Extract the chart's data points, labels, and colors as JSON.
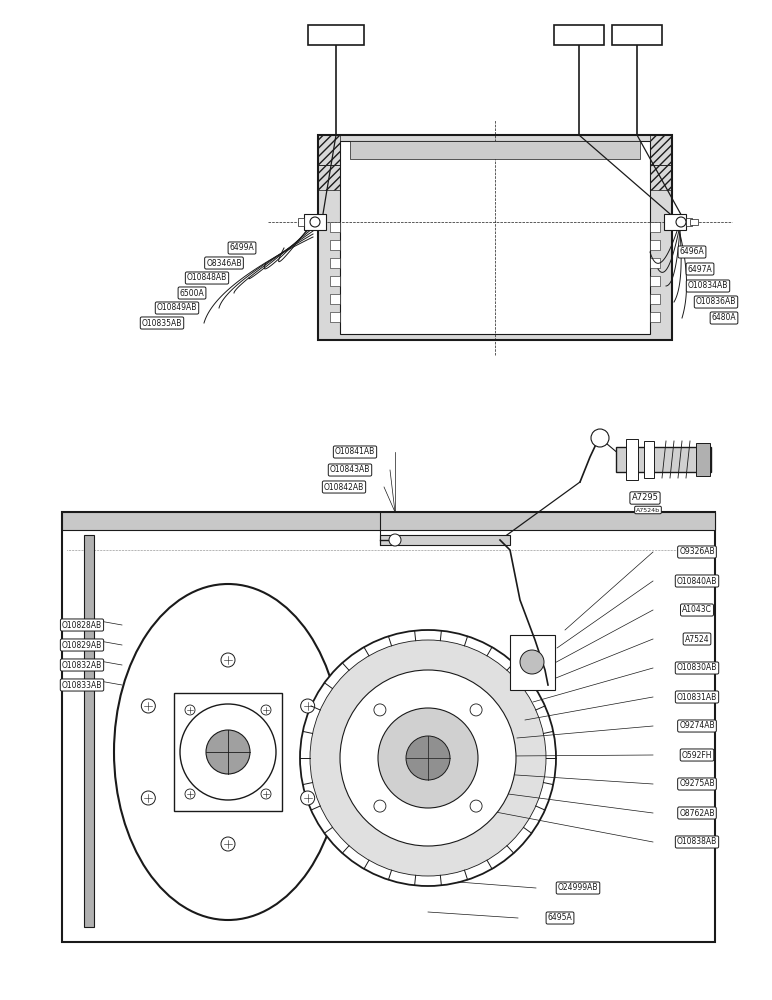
{
  "bg_color": "#ffffff",
  "line_color": "#1a1a1a",
  "top_labels_left": [
    "6499A",
    "O8346AB",
    "O10848AB",
    "6500A",
    "O10849AB",
    "O10835AB"
  ],
  "top_labels_right": [
    "6496A",
    "6497A",
    "O10834AB",
    "O10836AB",
    "6480A"
  ],
  "bottom_labels_left": [
    "O10828AB",
    "O10829AB",
    "O10832AB",
    "O10833AB"
  ],
  "bottom_labels_top": [
    "O10841AB",
    "O10843AB",
    "O10842AB"
  ],
  "bottom_labels_right": [
    "O9326AB",
    "O10840AB",
    "A1043C",
    "A7524",
    "O10830AB",
    "O10831AB",
    "O9274AB",
    "O592FH",
    "O9275AB",
    "O8762AB",
    "O10838AB"
  ],
  "bottom_labels_bot": [
    "O24999AB",
    "6495A"
  ],
  "top_right_label": "A7295",
  "second_top_right_label": "A7524"
}
